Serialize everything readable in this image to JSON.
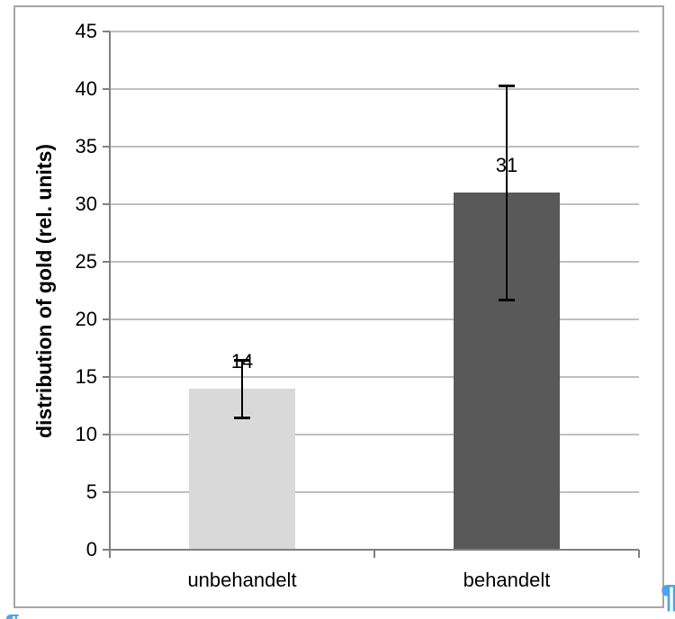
{
  "chart_data": {
    "type": "bar",
    "categories": [
      "unbehandelt",
      "behandelt"
    ],
    "values": [
      14,
      31
    ],
    "data_labels": [
      "14",
      "31"
    ],
    "error_bars": [
      {
        "low": 11.5,
        "high": 16.5
      },
      {
        "low": 21.7,
        "high": 40.3
      }
    ],
    "bar_colors": [
      "#d9d9d9",
      "#595959"
    ],
    "title": "",
    "xlabel": "",
    "ylabel": "distribution of gold (rel. units)",
    "ylim": [
      0,
      45
    ],
    "yticks": [
      0,
      5,
      10,
      15,
      20,
      25,
      30,
      35,
      40,
      45
    ],
    "grid": true,
    "legend_position": "none"
  },
  "colors": {
    "gridline": "#bfbfbf",
    "axis": "#808080",
    "frame_border": "#a6a6a6",
    "error_bar": "#000000",
    "text": "#000000",
    "bar_light": "#d9d9d9",
    "bar_dark": "#595959",
    "formatting_mark": "#4ba6e9",
    "background": "#ffffff"
  },
  "formatting_marks": {
    "pilcrow": "¶"
  }
}
